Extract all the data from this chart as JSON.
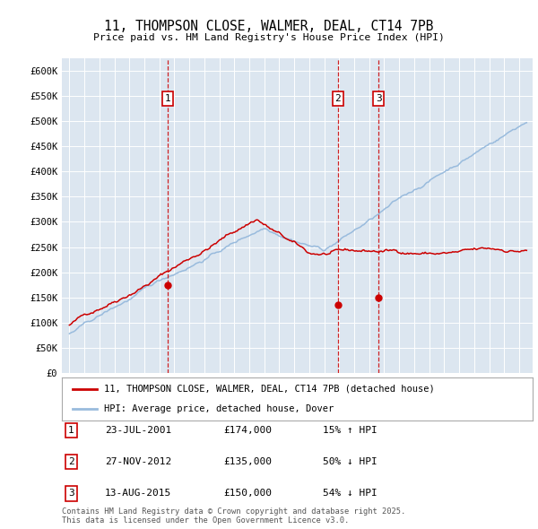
{
  "title": "11, THOMPSON CLOSE, WALMER, DEAL, CT14 7PB",
  "subtitle": "Price paid vs. HM Land Registry's House Price Index (HPI)",
  "ylim": [
    0,
    625000
  ],
  "yticks": [
    0,
    50000,
    100000,
    150000,
    200000,
    250000,
    300000,
    350000,
    400000,
    450000,
    500000,
    550000,
    600000
  ],
  "ytick_labels": [
    "£0",
    "£50K",
    "£100K",
    "£150K",
    "£200K",
    "£250K",
    "£300K",
    "£350K",
    "£400K",
    "£450K",
    "£500K",
    "£550K",
    "£600K"
  ],
  "bg_color": "#dce6f0",
  "red_color": "#cc0000",
  "blue_color": "#99bbdd",
  "sale_dates": [
    2001.56,
    2012.91,
    2015.62
  ],
  "sale_prices": [
    174000,
    135000,
    150000
  ],
  "sale_labels": [
    "1",
    "2",
    "3"
  ],
  "sale_date_strs": [
    "23-JUL-2001",
    "27-NOV-2012",
    "13-AUG-2015"
  ],
  "sale_price_strs": [
    "£174,000",
    "£135,000",
    "£150,000"
  ],
  "sale_hpi_strs": [
    "15% ↑ HPI",
    "50% ↓ HPI",
    "54% ↓ HPI"
  ],
  "legend_line1": "11, THOMPSON CLOSE, WALMER, DEAL, CT14 7PB (detached house)",
  "legend_line2": "HPI: Average price, detached house, Dover",
  "footer": "Contains HM Land Registry data © Crown copyright and database right 2025.\nThis data is licensed under the Open Government Licence v3.0."
}
